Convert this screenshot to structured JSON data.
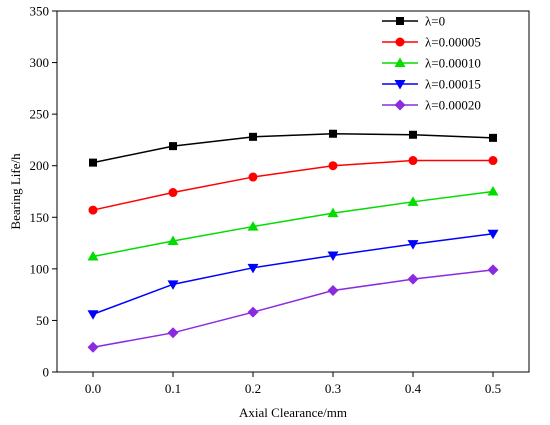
{
  "chart_data": {
    "type": "line",
    "title": "",
    "xlabel": "Axial Clearance/mm",
    "ylabel": "Bearing Life/h",
    "x": [
      0.0,
      0.1,
      0.2,
      0.3,
      0.4,
      0.5
    ],
    "x_tick_labels": [
      "0.0",
      "0.1",
      "0.2",
      "0.3",
      "0.4",
      "0.5"
    ],
    "xlim": [
      -0.045,
      0.545
    ],
    "ylim": [
      0,
      350
    ],
    "y_tick_labels": [
      "0",
      "50",
      "100",
      "150",
      "200",
      "250",
      "300",
      "350"
    ],
    "y_ticks": [
      0,
      50,
      100,
      150,
      200,
      250,
      300,
      350
    ],
    "grid": false,
    "legend_position": "top-right",
    "series": [
      {
        "name": "λ=0",
        "marker": "square",
        "color": "#000000",
        "values": [
          203,
          219,
          228,
          231,
          230,
          227
        ]
      },
      {
        "name": "λ=0.00005",
        "marker": "circle",
        "color": "#ff0000",
        "values": [
          157,
          174,
          189,
          200,
          205,
          205
        ]
      },
      {
        "name": "λ=0.00010",
        "marker": "triangle-up",
        "color": "#00dd00",
        "values": [
          112,
          127,
          141,
          154,
          165,
          175
        ]
      },
      {
        "name": "λ=0.00015",
        "marker": "triangle-down",
        "color": "#0000ff",
        "values": [
          56,
          85,
          101,
          113,
          124,
          134
        ]
      },
      {
        "name": "λ=0.00020",
        "marker": "diamond",
        "color": "#8a2be2",
        "values": [
          24,
          38,
          58,
          79,
          90,
          99
        ]
      }
    ]
  }
}
